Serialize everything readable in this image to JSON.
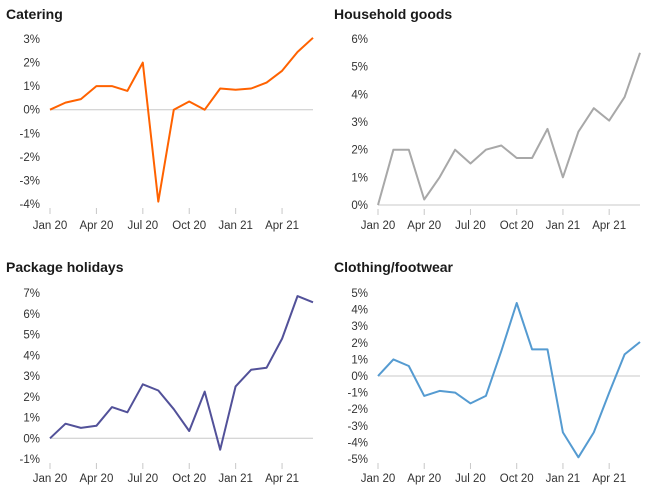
{
  "chart_data": [
    {
      "type": "line",
      "title": "Catering",
      "color": "#ff6200",
      "x": [
        "Jan 20",
        "Feb 20",
        "Mar 20",
        "Apr 20",
        "May 20",
        "Jun 20",
        "Jul 20",
        "Aug 20",
        "Sep 20",
        "Oct 20",
        "Nov 20",
        "Dec 20",
        "Jan 21",
        "Feb 21",
        "Mar 21",
        "Apr 21",
        "May 21",
        "Jun 21"
      ],
      "xticks": [
        "Jan 20",
        "Apr 20",
        "Jul 20",
        "Oct 20",
        "Jan 21",
        "Apr 21"
      ],
      "values": [
        0.0,
        0.3,
        0.45,
        1.0,
        1.0,
        0.8,
        2.0,
        -3.9,
        0.0,
        0.35,
        0.0,
        0.9,
        0.85,
        0.9,
        1.15,
        1.65,
        2.45,
        3.05
      ],
      "ylim": [
        -4,
        3
      ],
      "yticks": [
        "3%",
        "2%",
        "1%",
        "0%",
        "-1%",
        "-2%",
        "-3%",
        "-4%"
      ]
    },
    {
      "type": "line",
      "title": "Household goods",
      "color": "#a8a8a8",
      "x": [
        "Jan 20",
        "Feb 20",
        "Mar 20",
        "Apr 20",
        "May 20",
        "Jun 20",
        "Jul 20",
        "Aug 20",
        "Sep 20",
        "Oct 20",
        "Nov 20",
        "Dec 20",
        "Jan 21",
        "Feb 21",
        "Mar 21",
        "Apr 21",
        "May 21",
        "Jun 21"
      ],
      "xticks": [
        "Jan 20",
        "Apr 20",
        "Jul 20",
        "Oct 20",
        "Jan 21",
        "Apr 21"
      ],
      "values": [
        0.0,
        2.0,
        2.0,
        0.2,
        1.0,
        2.0,
        1.5,
        2.0,
        2.15,
        1.7,
        1.7,
        2.75,
        1.0,
        2.65,
        3.5,
        3.05,
        3.9,
        5.5
      ],
      "ylim": [
        0,
        6
      ],
      "yticks": [
        "6%",
        "5%",
        "4%",
        "3%",
        "2%",
        "1%",
        "0%"
      ]
    },
    {
      "type": "line",
      "title": "Package holidays",
      "color": "#525199",
      "x": [
        "Jan 20",
        "Feb 20",
        "Mar 20",
        "Apr 20",
        "May 20",
        "Jun 20",
        "Jul 20",
        "Aug 20",
        "Sep 20",
        "Oct 20",
        "Nov 20",
        "Dec 20",
        "Jan 21",
        "Feb 21",
        "Mar 21",
        "Apr 21",
        "May 21",
        "Jun 21"
      ],
      "xticks": [
        "Jan 20",
        "Apr 20",
        "Jul 20",
        "Oct 20",
        "Jan 21",
        "Apr 21"
      ],
      "values": [
        0.0,
        0.7,
        0.5,
        0.6,
        1.5,
        1.25,
        2.6,
        2.3,
        1.4,
        0.35,
        2.25,
        -0.55,
        2.5,
        3.3,
        3.4,
        4.8,
        6.85,
        6.55
      ],
      "ylim": [
        -1,
        7
      ],
      "yticks": [
        "7%",
        "6%",
        "5%",
        "4%",
        "3%",
        "2%",
        "1%",
        "0%",
        "-1%"
      ]
    },
    {
      "type": "line",
      "title": "Clothing/footwear",
      "color": "#559bd1",
      "x": [
        "Jan 20",
        "Feb 20",
        "Mar 20",
        "Apr 20",
        "May 20",
        "Jun 20",
        "Jul 20",
        "Aug 20",
        "Sep 20",
        "Oct 20",
        "Nov 20",
        "Dec 20",
        "Jan 21",
        "Feb 21",
        "Mar 21",
        "Apr 21",
        "May 21",
        "Jun 21"
      ],
      "xticks": [
        "Jan 20",
        "Apr 20",
        "Jul 20",
        "Oct 20",
        "Jan 21",
        "Apr 21"
      ],
      "values": [
        0.0,
        1.0,
        0.6,
        -1.2,
        -0.9,
        -1.0,
        -1.65,
        -1.2,
        1.5,
        4.4,
        1.6,
        1.6,
        -3.4,
        -4.9,
        -3.4,
        -1.0,
        1.3,
        2.05
      ],
      "ylim": [
        -5,
        5
      ],
      "yticks": [
        "5%",
        "4%",
        "3%",
        "2%",
        "1%",
        "0%",
        "-1%",
        "-2%",
        "-3%",
        "-4%",
        "-5%"
      ]
    }
  ]
}
